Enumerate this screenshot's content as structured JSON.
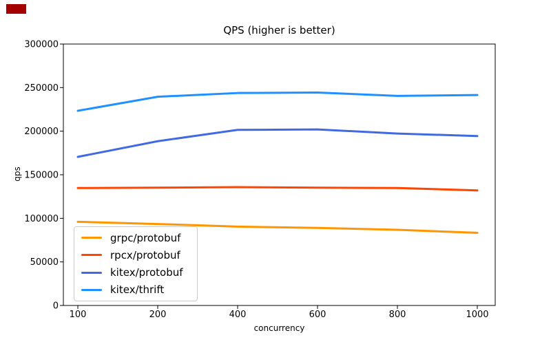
{
  "overlay": {
    "red_marker_color": "#a40000"
  },
  "chart_data": {
    "type": "line",
    "title": "QPS (higher is better)",
    "xlabel": "concurrency",
    "ylabel": "qps",
    "categories": [
      100,
      200,
      400,
      600,
      800,
      1000
    ],
    "x_axis_type": "categorical-equally-spaced",
    "ylim": [
      0,
      300000
    ],
    "yticks": [
      0,
      50000,
      100000,
      150000,
      200000,
      250000,
      300000
    ],
    "grid": false,
    "legend_position": "lower-left-inside",
    "axis_color": "#000000",
    "series": [
      {
        "name": "grpc/protobuf",
        "color": "#FF9500",
        "values": [
          96000,
          93500,
          90500,
          89000,
          86800,
          83400
        ]
      },
      {
        "name": "rpcx/protobuf",
        "color": "#FF4500",
        "values": [
          134800,
          135200,
          135800,
          135200,
          134800,
          132000
        ]
      },
      {
        "name": "kitex/protobuf",
        "color": "#4169E1",
        "values": [
          170500,
          188500,
          201500,
          202000,
          197300,
          194400
        ]
      },
      {
        "name": "kitex/thrift",
        "color": "#1E90FF",
        "values": [
          223400,
          239500,
          243800,
          244300,
          240500,
          241500
        ]
      }
    ]
  }
}
